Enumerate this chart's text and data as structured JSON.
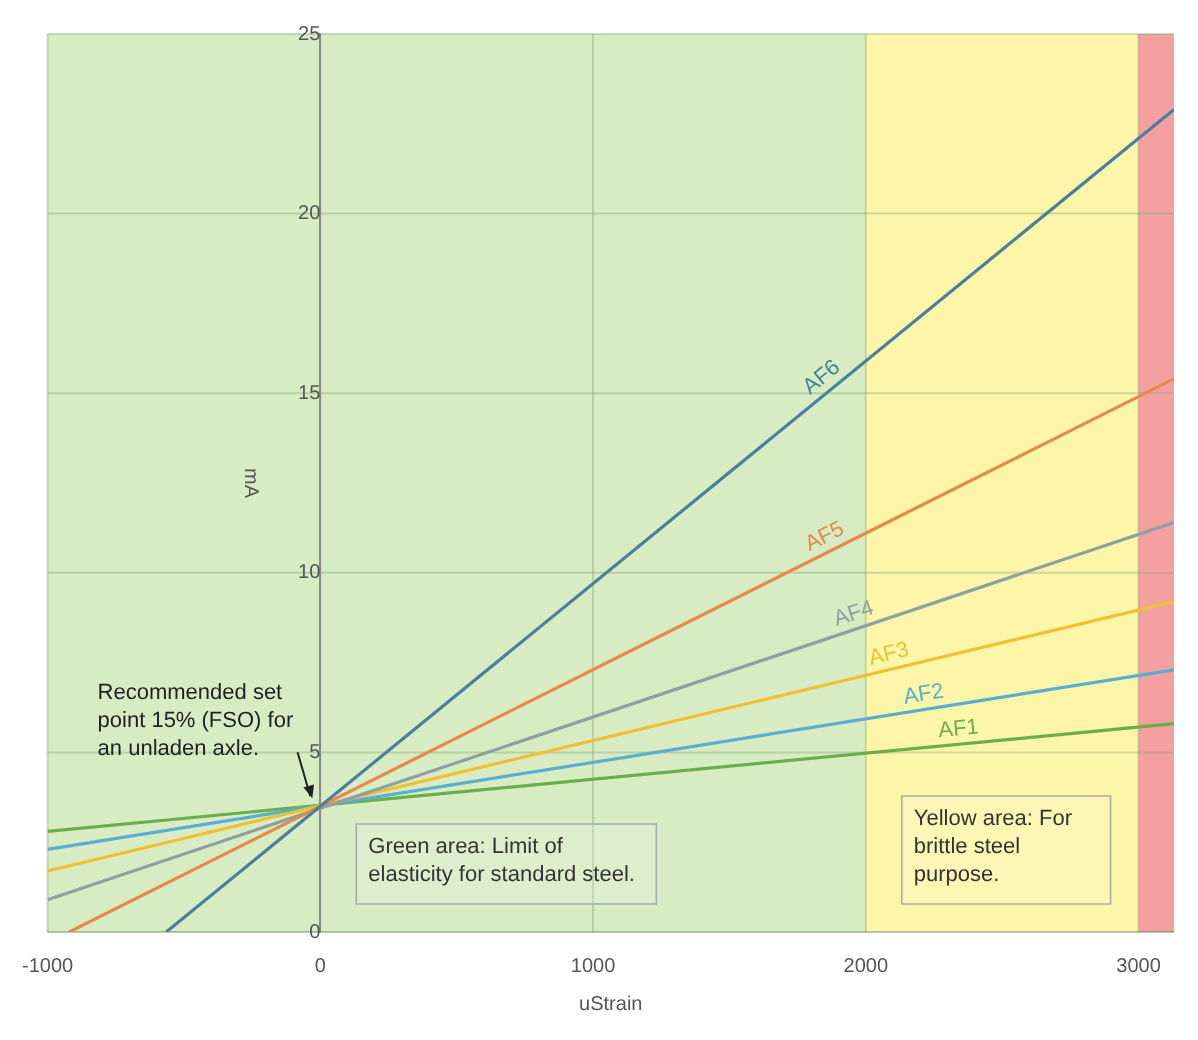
{
  "chart_data": {
    "type": "line",
    "xlabel": "uStrain",
    "ylabel": "mA",
    "xlim": [
      -1000,
      3130
    ],
    "ylim": [
      0,
      25
    ],
    "xticks": [
      -1000,
      0,
      1000,
      2000,
      3000
    ],
    "yticks": [
      0,
      5,
      10,
      15,
      20,
      25
    ],
    "grid": true,
    "legend": false,
    "marker": "none",
    "line_style": "solid",
    "series": [
      {
        "name": "AF6",
        "color": "#4a7fa0",
        "x": [
          -565,
          3130
        ],
        "values": [
          0,
          22.9
        ]
      },
      {
        "name": "AF5",
        "color": "#e8884a",
        "x": [
          -921,
          3130
        ],
        "values": [
          0,
          15.4
        ]
      },
      {
        "name": "AF4",
        "color": "#8fa0a0",
        "x": [
          -1000,
          3130
        ],
        "values": [
          0.9,
          11.4
        ]
      },
      {
        "name": "AF3",
        "color": "#f0c030",
        "x": [
          -1000,
          3130
        ],
        "values": [
          1.7,
          9.2
        ]
      },
      {
        "name": "AF2",
        "color": "#5aaed0",
        "x": [
          -1000,
          3130
        ],
        "values": [
          2.3,
          7.3
        ]
      },
      {
        "name": "AF1",
        "color": "#6ab04a",
        "x": [
          -1000,
          3130
        ],
        "values": [
          2.8,
          5.8
        ]
      }
    ],
    "bands": [
      {
        "axis": "x",
        "from": -1000,
        "to": 2000,
        "label": "Green area: Limit of elasticity for standard steel.",
        "color": "#d8ecc4"
      },
      {
        "axis": "x",
        "from": 2000,
        "to": 3000,
        "label": "Yellow area: For brittle steel purpose.",
        "color": "#fdf5a8"
      },
      {
        "axis": "x",
        "from": 3000,
        "to": 3130,
        "color": "#f5a0a0"
      }
    ],
    "annotations": [
      {
        "text": "Recommended set point 15% (FSO) for an unladen axle.",
        "x": 0,
        "y": 3.5
      }
    ]
  }
}
